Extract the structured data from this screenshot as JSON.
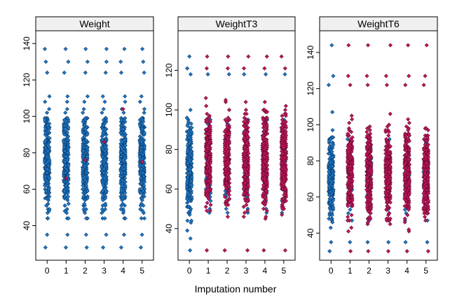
{
  "chart_data": {
    "type": "scatter",
    "layout": "three panels side by side (lattice stripplot), vertical jitter plot",
    "xlabel": "Imputation number",
    "x_ticks": [
      "0",
      "1",
      "2",
      "3",
      "4",
      "5"
    ],
    "colors": {
      "observed": "#1f78c8",
      "observed_edge": "#0b3e6e",
      "imputed": "#c2185b",
      "imputed_edge": "#6d0a32",
      "strip": "#f0f0f0"
    },
    "panels": [
      {
        "name": "Weight",
        "ylim": [
          21,
          147
        ],
        "y_ticks": [
          40,
          60,
          80,
          100,
          120,
          140
        ],
        "observed_range": [
          35,
          124
        ],
        "observed_bulk_range": [
          38,
          112
        ],
        "observed_outliers": [
          28,
          130,
          137
        ],
        "imputed_values": {
          "1": [
            66
          ],
          "2": [
            76
          ],
          "3": [
            86
          ],
          "4": [
            104
          ],
          "5": [
            75
          ]
        },
        "density": "observed only in every column; one imputed value per imputation"
      },
      {
        "name": "WeightT3",
        "ylim": [
          24,
          140
        ],
        "y_ticks": [
          40,
          60,
          80,
          100,
          120
        ],
        "observed_range": [
          35,
          118
        ],
        "observed_bulk_range": [
          38,
          105
        ],
        "observed_outliers": [
          29,
          121,
          127
        ],
        "imputed_range": [
          35,
          127
        ],
        "imputed_bulk_range": [
          44,
          107
        ],
        "density": "imputations 1-5 dominated by imputed values"
      },
      {
        "name": "WeightT6",
        "ylim": [
          25,
          152
        ],
        "y_ticks": [
          40,
          60,
          80,
          100,
          120,
          140
        ],
        "observed_range": [
          35,
          107
        ],
        "observed_bulk_range": [
          40,
          104
        ],
        "observed_outliers": [
          30,
          122,
          127,
          144
        ],
        "imputed_range": [
          34,
          144
        ],
        "imputed_bulk_range": [
          40,
          107
        ],
        "density": "imputations 1-5 dominated by imputed values"
      }
    ]
  }
}
